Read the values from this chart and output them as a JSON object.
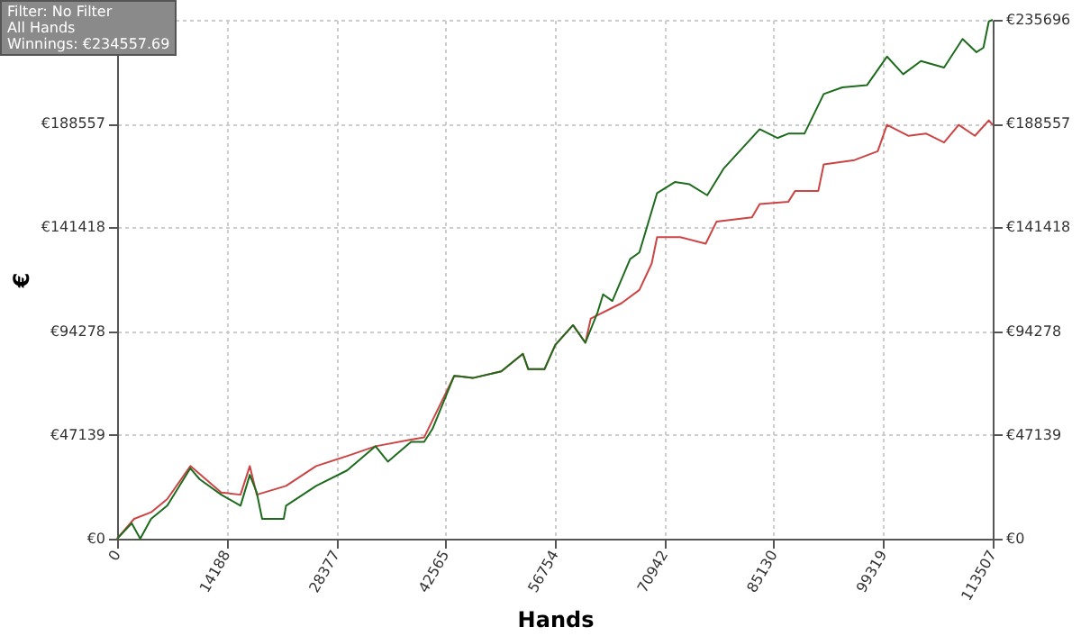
{
  "chart_data": {
    "type": "line",
    "xlabel": "Hands",
    "ylabel": "€",
    "annotations": [
      "Filter: No Filter",
      "All Hands",
      "Winnings: €234557.69"
    ],
    "xlim": [
      0,
      113507
    ],
    "xticks": [
      0,
      14188,
      28377,
      42565,
      56754,
      70942,
      85130,
      99319,
      113507
    ],
    "ylim": [
      0,
      235696
    ],
    "yticks": [
      {
        "value": 0,
        "label": "€0"
      },
      {
        "value": 47139,
        "label": "€47139"
      },
      {
        "value": 94278,
        "label": "€94278"
      },
      {
        "value": 141418,
        "label": "€141418"
      },
      {
        "value": 188557,
        "label": "€188557"
      },
      {
        "value": 235696,
        "label": null
      }
    ],
    "y2lim": [
      0,
      235696
    ],
    "y2ticks": [
      {
        "value": 0,
        "label": "€0"
      },
      {
        "value": 47139,
        "label": "€47139"
      },
      {
        "value": 94278,
        "label": "€94278"
      },
      {
        "value": 141418,
        "label": "€141418"
      },
      {
        "value": 188557,
        "label": "€188557"
      },
      {
        "value": 235696,
        "label": "€235696"
      }
    ],
    "grid": true,
    "series": [
      {
        "color": "#cc4444",
        "x": [
          0,
          2200,
          4400,
          6500,
          9500,
          13500,
          16000,
          17200,
          18100,
          21900,
          25800,
          30200,
          33500,
          38100,
          39800,
          43700,
          46100,
          49800,
          52600,
          53300,
          55400,
          56800,
          59100,
          60700,
          61400,
          65400,
          67700,
          69300,
          70000,
          73000,
          76300,
          77700,
          82300,
          83300,
          87000,
          87900,
          90900,
          91600,
          95600,
          98600,
          99800,
          102600,
          104900,
          107200,
          109100,
          111200,
          113000,
          113507
        ],
        "values": [
          0,
          9000,
          12000,
          18000,
          33000,
          21000,
          20000,
          33000,
          20000,
          24000,
          33000,
          38000,
          42000,
          45000,
          46000,
          74000,
          73000,
          76000,
          84000,
          77000,
          77000,
          88000,
          97000,
          89000,
          100000,
          107000,
          113000,
          125000,
          137000,
          137000,
          134000,
          144000,
          146000,
          152000,
          153000,
          158000,
          158000,
          170000,
          172000,
          176000,
          188000,
          183000,
          184000,
          180000,
          188000,
          183000,
          190000,
          188000
        ]
      },
      {
        "color": "#1e6b1e",
        "x": [
          0,
          1900,
          3000,
          4400,
          6500,
          9500,
          10700,
          13500,
          16000,
          17200,
          18100,
          18800,
          21600,
          21900,
          25800,
          29800,
          33500,
          35100,
          38100,
          39800,
          40900,
          43700,
          46100,
          49800,
          52600,
          53300,
          55400,
          56800,
          59100,
          60700,
          62300,
          63000,
          64200,
          66500,
          67700,
          70000,
          72300,
          74200,
          76500,
          78600,
          83300,
          85600,
          87000,
          89100,
          91600,
          94000,
          97200,
          99800,
          101900,
          104200,
          107200,
          109600,
          111400,
          112300,
          113000,
          113507
        ],
        "values": [
          0,
          7000,
          0,
          9000,
          15000,
          32000,
          27000,
          20000,
          15000,
          29000,
          21000,
          9000,
          9000,
          15000,
          24000,
          31000,
          42000,
          35000,
          44000,
          44000,
          50000,
          74000,
          73000,
          76000,
          84000,
          77000,
          77000,
          88000,
          97000,
          89000,
          103000,
          111000,
          108000,
          127000,
          130000,
          157000,
          162000,
          161000,
          156000,
          168000,
          186000,
          182000,
          184000,
          184000,
          202000,
          205000,
          206000,
          219000,
          211000,
          217000,
          214000,
          227000,
          221000,
          223000,
          235000,
          235696
        ]
      }
    ]
  }
}
